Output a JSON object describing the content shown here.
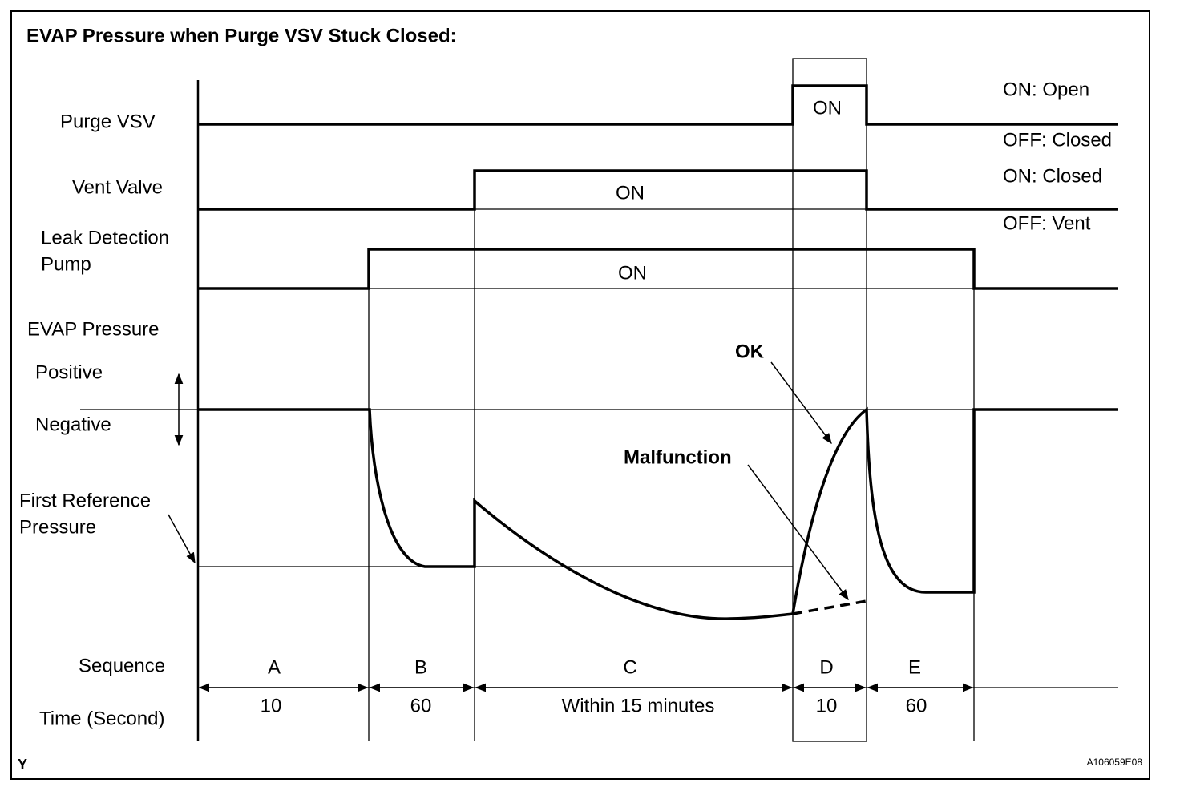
{
  "title": "EVAP Pressure when Purge VSV Stuck Closed:",
  "signals": {
    "purge_vsv": {
      "label": "Purge VSV",
      "on": "ON",
      "on_state": "ON: Open",
      "off_state": "OFF: Closed"
    },
    "vent_valve": {
      "label": "Vent Valve",
      "on": "ON",
      "on_state": "ON: Closed",
      "off_state": "OFF: Vent"
    },
    "leak_pump": {
      "label": [
        "Leak Detection",
        "Pump"
      ],
      "on": "ON"
    },
    "evap_pressure": {
      "label": "EVAP Pressure",
      "positive": "Positive",
      "negative": "Negative",
      "reference": [
        "First Reference",
        "Pressure"
      ],
      "ok": "OK",
      "malfunction": "Malfunction"
    }
  },
  "sequence": {
    "label": "Sequence",
    "time_label": "Time (Second)",
    "phases": [
      {
        "name": "A",
        "time": "10"
      },
      {
        "name": "B",
        "time": "60"
      },
      {
        "name": "C",
        "time": "Within 15 minutes"
      },
      {
        "name": "D",
        "time": "10"
      },
      {
        "name": "E",
        "time": "60"
      }
    ]
  },
  "footer": {
    "mark": "Y",
    "code": "A106059E08"
  }
}
